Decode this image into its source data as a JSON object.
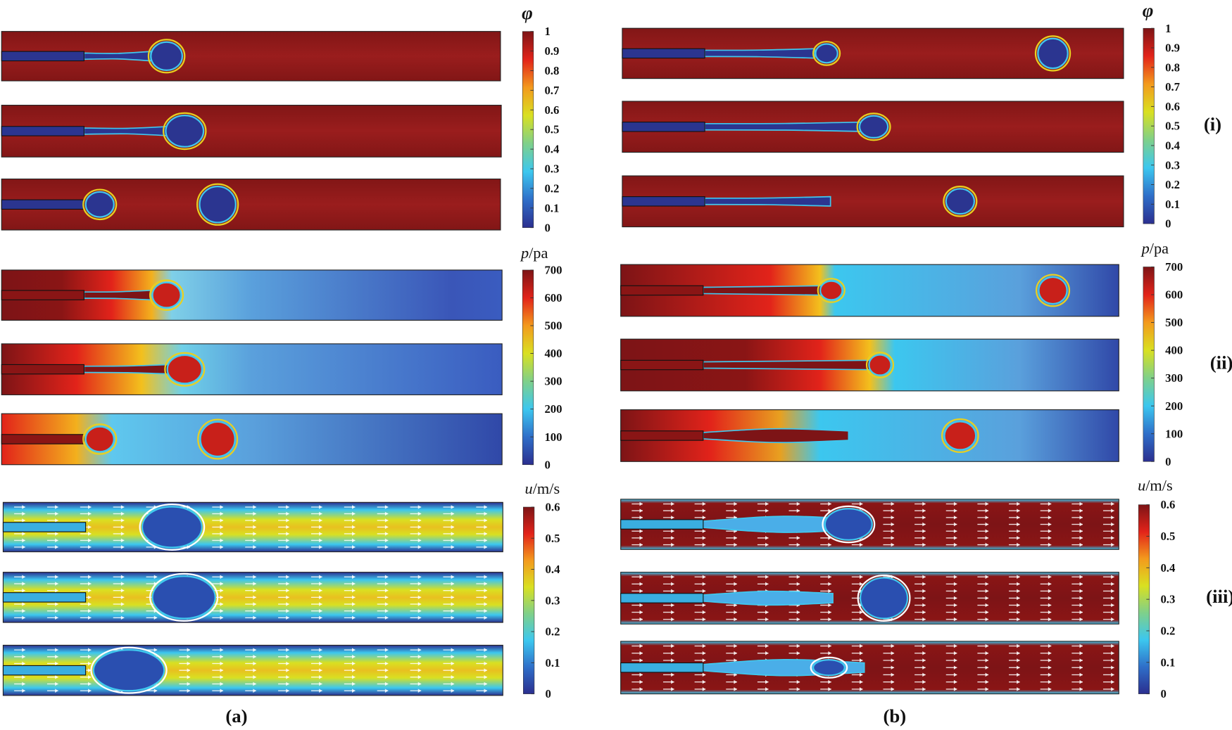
{
  "colormap": [
    "#2b2f8f",
    "#2f6fc9",
    "#3cc7ef",
    "#7fd08a",
    "#d9e021",
    "#f39a1d",
    "#e2231a",
    "#7d1416"
  ],
  "colorbars": {
    "phi": {
      "title": "φ",
      "ticks": [
        "1",
        "0.9",
        "0.8",
        "0.7",
        "0.6",
        "0.5",
        "0.4",
        "0.3",
        "0.2",
        "0.1",
        "0"
      ]
    },
    "pressure": {
      "title_var": "p",
      "title_unit": "/pa",
      "ticks": [
        "700",
        "600",
        "500",
        "400",
        "300",
        "200",
        "100",
        "0"
      ]
    },
    "velocity": {
      "title_var": "u",
      "title_unit": "/m/s",
      "ticks": [
        "0.6",
        "0.5",
        "0.4",
        "0.3",
        "0.2",
        "0.1",
        "0"
      ]
    }
  },
  "panel_labels": {
    "a": "(a)",
    "b": "(b)"
  },
  "row_labels": {
    "i": "(i)",
    "ii": "(ii)",
    "iii": "(iii)"
  }
}
